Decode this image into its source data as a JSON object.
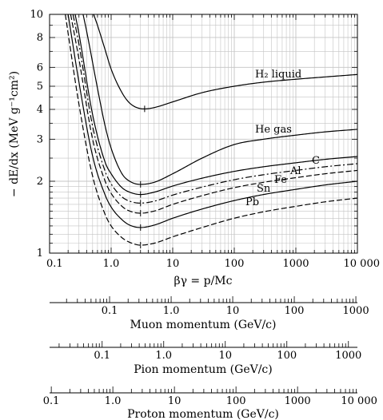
{
  "chart_data": {
    "type": "line",
    "xscale": "log",
    "yscale": "log",
    "grid": true,
    "xlim": [
      0.1,
      10000
    ],
    "ylim": [
      1,
      10
    ],
    "xlabel": "βγ = p/Mc",
    "ylabel": "− dE/dx (MeV g⁻¹cm²)",
    "xticks": [
      "0.1",
      "1.0",
      "10",
      "100",
      "1000",
      "10 000"
    ],
    "yticks": [
      "1",
      "2",
      "3",
      "4",
      "5",
      "6",
      "8",
      "10"
    ],
    "series": [
      {
        "name": "H₂ liquid",
        "style": "solid",
        "x": [
          0.52,
          0.6,
          0.8,
          1.0,
          1.5,
          2.0,
          3.0,
          3.5,
          5,
          10,
          30,
          100,
          300,
          1000,
          3000,
          10000
        ],
        "y": [
          10.0,
          9.0,
          7.1,
          5.9,
          4.7,
          4.25,
          4.03,
          4.02,
          4.07,
          4.3,
          4.7,
          5.0,
          5.2,
          5.35,
          5.47,
          5.6
        ]
      },
      {
        "name": "He gas",
        "style": "solid",
        "x": [
          0.35,
          0.4,
          0.6,
          0.8,
          1.0,
          1.5,
          2.0,
          3.0,
          5,
          10,
          30,
          100,
          300,
          1000,
          3000,
          10000
        ],
        "y": [
          10.0,
          8.5,
          4.9,
          3.4,
          2.75,
          2.15,
          2.0,
          1.94,
          1.98,
          2.15,
          2.5,
          2.85,
          3.0,
          3.12,
          3.22,
          3.3
        ]
      },
      {
        "name": "C",
        "style": "solid",
        "x": [
          0.26,
          0.3,
          0.5,
          0.8,
          1.0,
          1.5,
          2.0,
          3.0,
          5,
          10,
          30,
          100,
          300,
          1000,
          3000,
          10000
        ],
        "y": [
          10.0,
          8.3,
          3.8,
          2.4,
          2.15,
          1.88,
          1.8,
          1.76,
          1.8,
          1.91,
          2.06,
          2.2,
          2.3,
          2.39,
          2.47,
          2.54
        ]
      },
      {
        "name": "Al",
        "style": "dash-dot",
        "x": [
          0.24,
          0.3,
          0.5,
          0.8,
          1.0,
          1.5,
          2.0,
          3.0,
          5,
          10,
          30,
          100,
          300,
          1000,
          3000,
          10000
        ],
        "y": [
          10.0,
          7.5,
          3.4,
          2.2,
          1.95,
          1.72,
          1.65,
          1.62,
          1.65,
          1.75,
          1.89,
          2.03,
          2.13,
          2.22,
          2.3,
          2.37
        ]
      },
      {
        "name": "Fe",
        "style": "dashed",
        "x": [
          0.22,
          0.3,
          0.5,
          0.8,
          1.0,
          1.5,
          2.0,
          3.0,
          5,
          10,
          30,
          100,
          300,
          1000,
          3000,
          10000
        ],
        "y": [
          10.0,
          6.5,
          3.0,
          2.0,
          1.78,
          1.57,
          1.5,
          1.47,
          1.5,
          1.6,
          1.74,
          1.88,
          1.98,
          2.07,
          2.15,
          2.22
        ]
      },
      {
        "name": "Sn",
        "style": "solid",
        "x": [
          0.2,
          0.3,
          0.5,
          0.8,
          1.0,
          1.5,
          2.0,
          3.0,
          5,
          10,
          30,
          100,
          300,
          1000,
          3000,
          10000
        ],
        "y": [
          10.0,
          5.2,
          2.55,
          1.75,
          1.56,
          1.38,
          1.31,
          1.28,
          1.31,
          1.4,
          1.53,
          1.66,
          1.76,
          1.85,
          1.93,
          2.0
        ]
      },
      {
        "name": "Pb",
        "style": "dashed",
        "x": [
          0.18,
          0.3,
          0.5,
          0.8,
          1.0,
          1.5,
          2.0,
          3.0,
          5,
          10,
          30,
          100,
          300,
          1000,
          3000,
          10000
        ],
        "y": [
          10.0,
          4.2,
          2.1,
          1.45,
          1.3,
          1.16,
          1.11,
          1.08,
          1.1,
          1.17,
          1.28,
          1.4,
          1.49,
          1.57,
          1.64,
          1.7
        ]
      }
    ],
    "minima_x": [
      3.5,
      3.0,
      3.0,
      3.0,
      3.0,
      3.0,
      3.0
    ],
    "secondary_scales": [
      {
        "title": "Muon momentum (GeV/c)",
        "range": [
          0.0106,
          1057
        ],
        "ticks": [
          "0.1",
          "1.0",
          "10",
          "100",
          "1000"
        ],
        "tick_values": [
          0.1,
          1,
          10,
          100,
          1000
        ]
      },
      {
        "title": "Pion momentum (GeV/c)",
        "range": [
          0.014,
          1396
        ],
        "ticks": [
          "0.1",
          "1.0",
          "10",
          "100",
          "1000"
        ],
        "tick_values": [
          0.1,
          1,
          10,
          100,
          1000
        ]
      },
      {
        "title": "Proton momentum (GeV/c)",
        "range": [
          0.0938,
          9383
        ],
        "ticks": [
          "0.1",
          "1.0",
          "10",
          "100",
          "1000",
          "10 000"
        ],
        "tick_values": [
          0.1,
          1,
          10,
          100,
          1000,
          10000
        ]
      }
    ]
  }
}
